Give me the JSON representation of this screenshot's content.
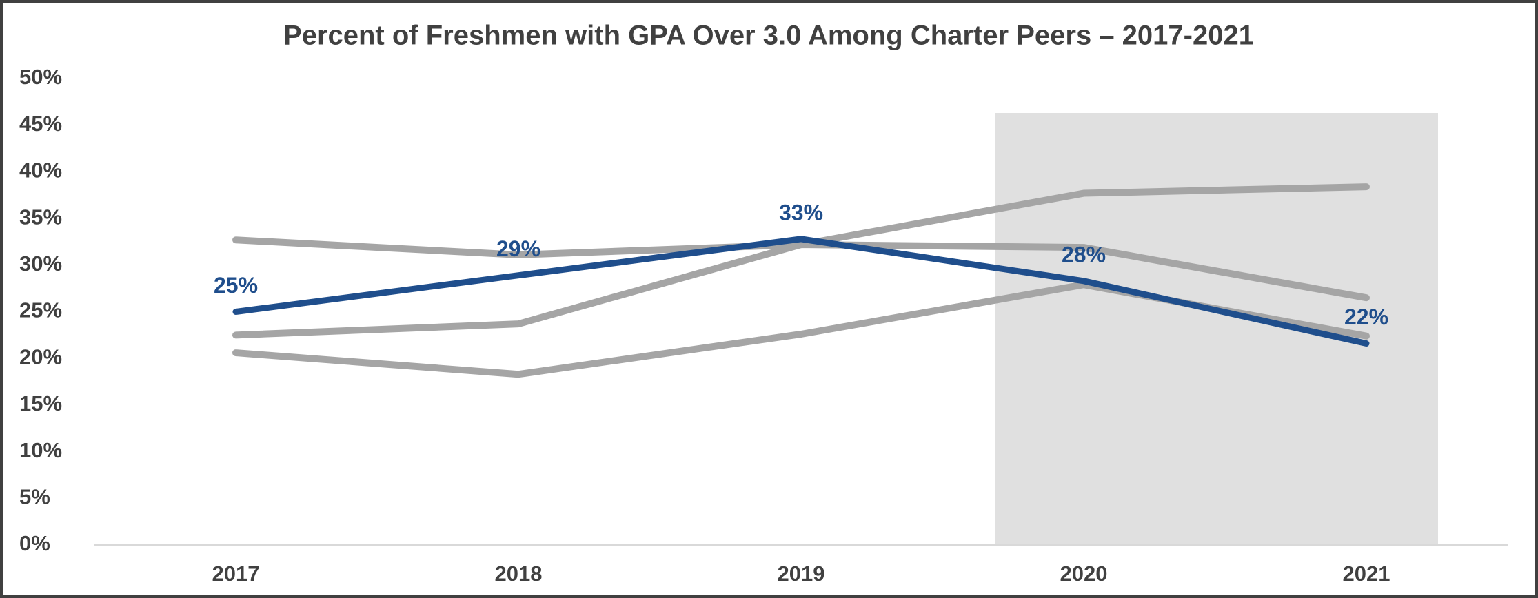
{
  "chart_data": {
    "type": "line",
    "title": "Percent of Freshmen with GPA Over 3.0 Among Charter Peers – 2017-2021",
    "categories": [
      "2017",
      "2018",
      "2019",
      "2020",
      "2021"
    ],
    "series": [
      {
        "color": "#a5a5a5",
        "values": [
          32.7,
          31.1,
          32.2,
          31.9,
          26.5
        ]
      },
      {
        "color": "#a5a5a5",
        "values": [
          22.5,
          23.7,
          32.2,
          37.7,
          38.4
        ]
      },
      {
        "color": "#a5a5a5",
        "values": [
          20.6,
          18.3,
          22.6,
          27.9,
          22.4
        ]
      },
      {
        "color": "#1f4e8c",
        "values": [
          25.0,
          28.9,
          32.8,
          28.3,
          21.6
        ],
        "value_labels": [
          "25%",
          "29%",
          "33%",
          "28%",
          "22%"
        ]
      }
    ],
    "ylim": [
      0,
      50
    ],
    "yticks": [
      {
        "value": 0,
        "label": "0%"
      },
      {
        "value": 5,
        "label": "5%"
      },
      {
        "value": 10,
        "label": "10%"
      },
      {
        "value": 15,
        "label": "15%"
      },
      {
        "value": 20,
        "label": "20%"
      },
      {
        "value": 25,
        "label": "25%"
      },
      {
        "value": 30,
        "label": "30%"
      },
      {
        "value": 35,
        "label": "35%"
      },
      {
        "value": 40,
        "label": "40%"
      },
      {
        "value": 45,
        "label": "45%"
      },
      {
        "value": 50,
        "label": "50%"
      }
    ],
    "grid": false
  }
}
